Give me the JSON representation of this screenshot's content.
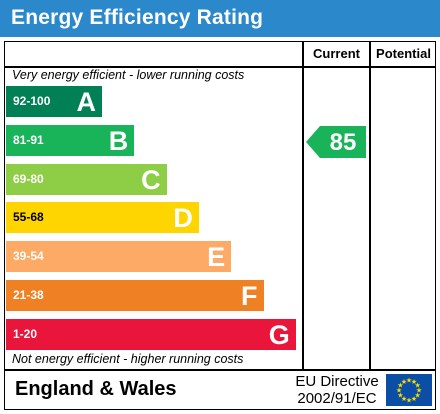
{
  "title": "Energy Efficiency Rating",
  "columns": {
    "current": "Current",
    "potential": "Potential"
  },
  "top_note": "Very energy efficient - lower running costs",
  "bottom_note": "Not energy efficient - higher running costs",
  "bands": [
    {
      "range": "92-100",
      "letter": "A",
      "color": "#008054"
    },
    {
      "range": "81-91",
      "letter": "B",
      "color": "#19b459"
    },
    {
      "range": "69-80",
      "letter": "C",
      "color": "#8dce46"
    },
    {
      "range": "55-68",
      "letter": "D",
      "color": "#ffd500"
    },
    {
      "range": "39-54",
      "letter": "E",
      "color": "#fcaa65"
    },
    {
      "range": "21-38",
      "letter": "F",
      "color": "#ef8023"
    },
    {
      "range": "1-20",
      "letter": "G",
      "color": "#e9153b"
    }
  ],
  "current_rating": {
    "value": "85",
    "color": "#19b459"
  },
  "footer": {
    "region": "England & Wales",
    "directive_line1": "EU Directive",
    "directive_line2": "2002/91/EC"
  },
  "colors": {
    "header": "#2a88cb",
    "eu_flag": "#0a4ea6",
    "eu_star": "#ffdd00"
  }
}
